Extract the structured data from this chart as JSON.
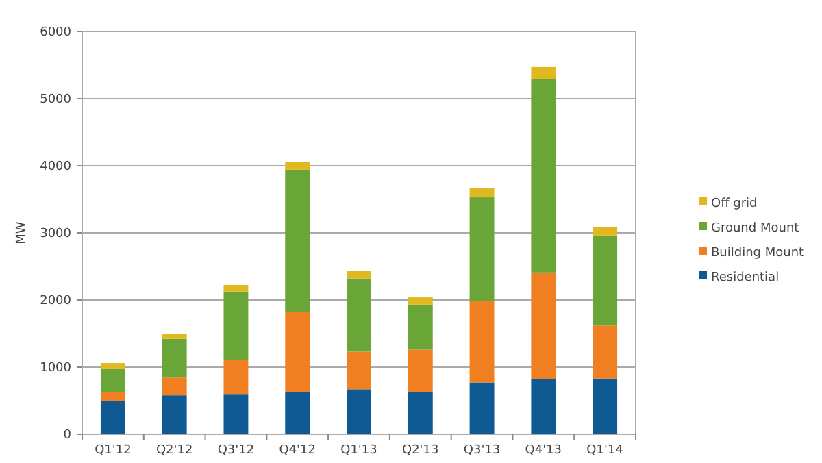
{
  "chart_data": {
    "type": "bar",
    "stacked": true,
    "ylabel": "MW",
    "categories": [
      "Q1'12",
      "Q2'12",
      "Q3'12",
      "Q4'12",
      "Q1'13",
      "Q2'13",
      "Q3'13",
      "Q4'13",
      "Q1'14"
    ],
    "series": [
      {
        "name": "Residential",
        "color": "#0f5a92",
        "values": [
          490,
          580,
          600,
          630,
          670,
          630,
          770,
          820,
          830
        ]
      },
      {
        "name": "Building Mount",
        "color": "#f07f22",
        "values": [
          140,
          265,
          510,
          1190,
          560,
          630,
          1210,
          1590,
          790
        ]
      },
      {
        "name": "Ground Mount",
        "color": "#6aa538",
        "values": [
          340,
          575,
          1015,
          2120,
          1090,
          670,
          1550,
          2880,
          1340
        ]
      },
      {
        "name": "Off grid",
        "color": "#e0b820",
        "values": [
          90,
          80,
          100,
          115,
          110,
          110,
          140,
          180,
          130
        ]
      }
    ],
    "ylim": [
      0,
      6000
    ],
    "yticks": [
      0,
      1000,
      2000,
      3000,
      4000,
      5000,
      6000
    ],
    "grid": "y",
    "legend": "right"
  }
}
